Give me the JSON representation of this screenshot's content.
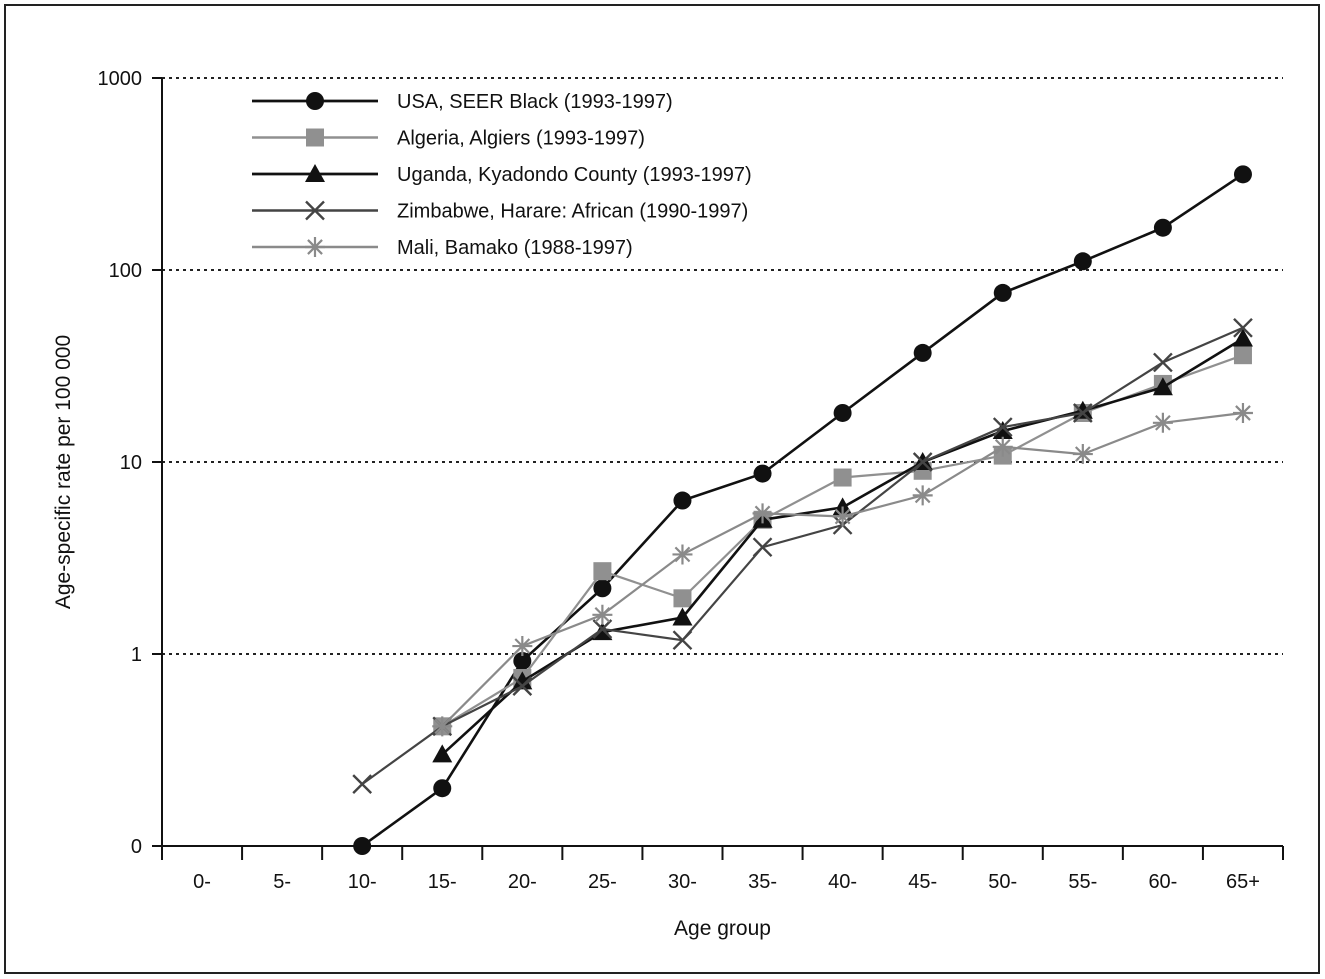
{
  "chart_data": {
    "type": "line",
    "title": "",
    "xlabel": "Age group",
    "ylabel": "Age-specific rate per 100 000",
    "y_scale": "log",
    "ylim": [
      0.1,
      1000
    ],
    "yticks": [
      0.1,
      1,
      10,
      100,
      1000
    ],
    "ytick_labels": [
      "0",
      "1",
      "10",
      "100",
      "1000"
    ],
    "grid": "horizontal dotted",
    "legend_position": "top-left",
    "categories": [
      "0-",
      "5-",
      "10-",
      "15-",
      "20-",
      "25-",
      "30-",
      "35-",
      "40-",
      "45-",
      "50-",
      "55-",
      "60-",
      "65+"
    ],
    "series": [
      {
        "name": "USA, SEER Black (1993-1997)",
        "marker": "circle",
        "color": "#111111",
        "values": [
          null,
          null,
          0.1,
          0.2,
          0.92,
          2.2,
          6.3,
          8.7,
          18,
          37,
          76,
          111,
          166,
          315
        ]
      },
      {
        "name": "Algeria, Algiers (1993-1997)",
        "marker": "square",
        "color": "#909090",
        "values": [
          null,
          null,
          null,
          0.42,
          0.75,
          2.7,
          1.95,
          5.0,
          8.3,
          9.0,
          10.8,
          18,
          25.5,
          36
        ]
      },
      {
        "name": "Uganda, Kyadondo County (1993-1997)",
        "marker": "triangle",
        "color": "#111111",
        "values": [
          null,
          null,
          null,
          0.3,
          0.72,
          1.3,
          1.55,
          5.0,
          5.8,
          10,
          14.5,
          18.5,
          24.5,
          44
        ]
      },
      {
        "name": "Zimbabwe, Harare: African (1990-1997)",
        "marker": "x",
        "color": "#444444",
        "values": [
          null,
          null,
          0.21,
          0.42,
          0.68,
          1.35,
          1.18,
          3.6,
          4.7,
          10,
          15.2,
          18,
          33,
          50
        ]
      },
      {
        "name": "Mali, Bamako (1988-1997)",
        "marker": "asterisk",
        "color": "#8a8a8a",
        "values": [
          null,
          null,
          null,
          0.42,
          1.1,
          1.6,
          3.3,
          5.4,
          5.2,
          6.7,
          12,
          11,
          16,
          18
        ]
      }
    ]
  }
}
